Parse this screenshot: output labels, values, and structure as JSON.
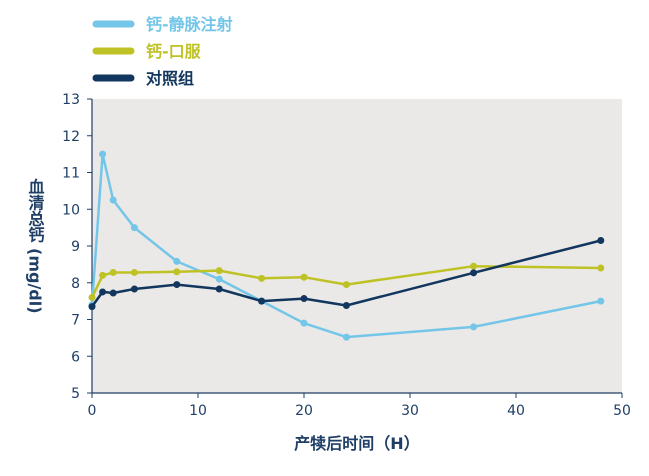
{
  "chart_data": {
    "type": "line",
    "xlabel": "产犊后时间（H）",
    "ylabel": "血清总钙 (mg/dl)",
    "xlim": [
      0,
      50
    ],
    "ylim": [
      5,
      13
    ],
    "xticks": [
      0,
      10,
      20,
      30,
      40,
      50
    ],
    "yticks": [
      5,
      6,
      7,
      8,
      9,
      10,
      11,
      12,
      13
    ],
    "grid": false,
    "legend_position": "top-left",
    "plot_background": "#ebe9e7",
    "axis_color": "#1f3f66",
    "series": [
      {
        "name": "钙-静脉注射",
        "color": "#74c6e8",
        "x": [
          0,
          1,
          2,
          4,
          8,
          12,
          16,
          20,
          24,
          36,
          48
        ],
        "y": [
          7.4,
          11.5,
          10.25,
          9.5,
          8.58,
          8.1,
          7.5,
          6.9,
          6.52,
          6.8,
          7.5
        ]
      },
      {
        "name": "钙-口服",
        "color": "#bfc224",
        "x": [
          0,
          1,
          2,
          4,
          8,
          12,
          16,
          20,
          24,
          36,
          48
        ],
        "y": [
          7.6,
          8.2,
          8.28,
          8.28,
          8.3,
          8.33,
          8.12,
          8.15,
          7.95,
          8.45,
          8.4
        ]
      },
      {
        "name": "对照组",
        "color": "#12365e",
        "x": [
          0,
          1,
          2,
          4,
          8,
          12,
          16,
          20,
          24,
          36,
          48
        ],
        "y": [
          7.35,
          7.75,
          7.72,
          7.83,
          7.95,
          7.83,
          7.5,
          7.57,
          7.38,
          8.27,
          9.15
        ]
      }
    ]
  }
}
